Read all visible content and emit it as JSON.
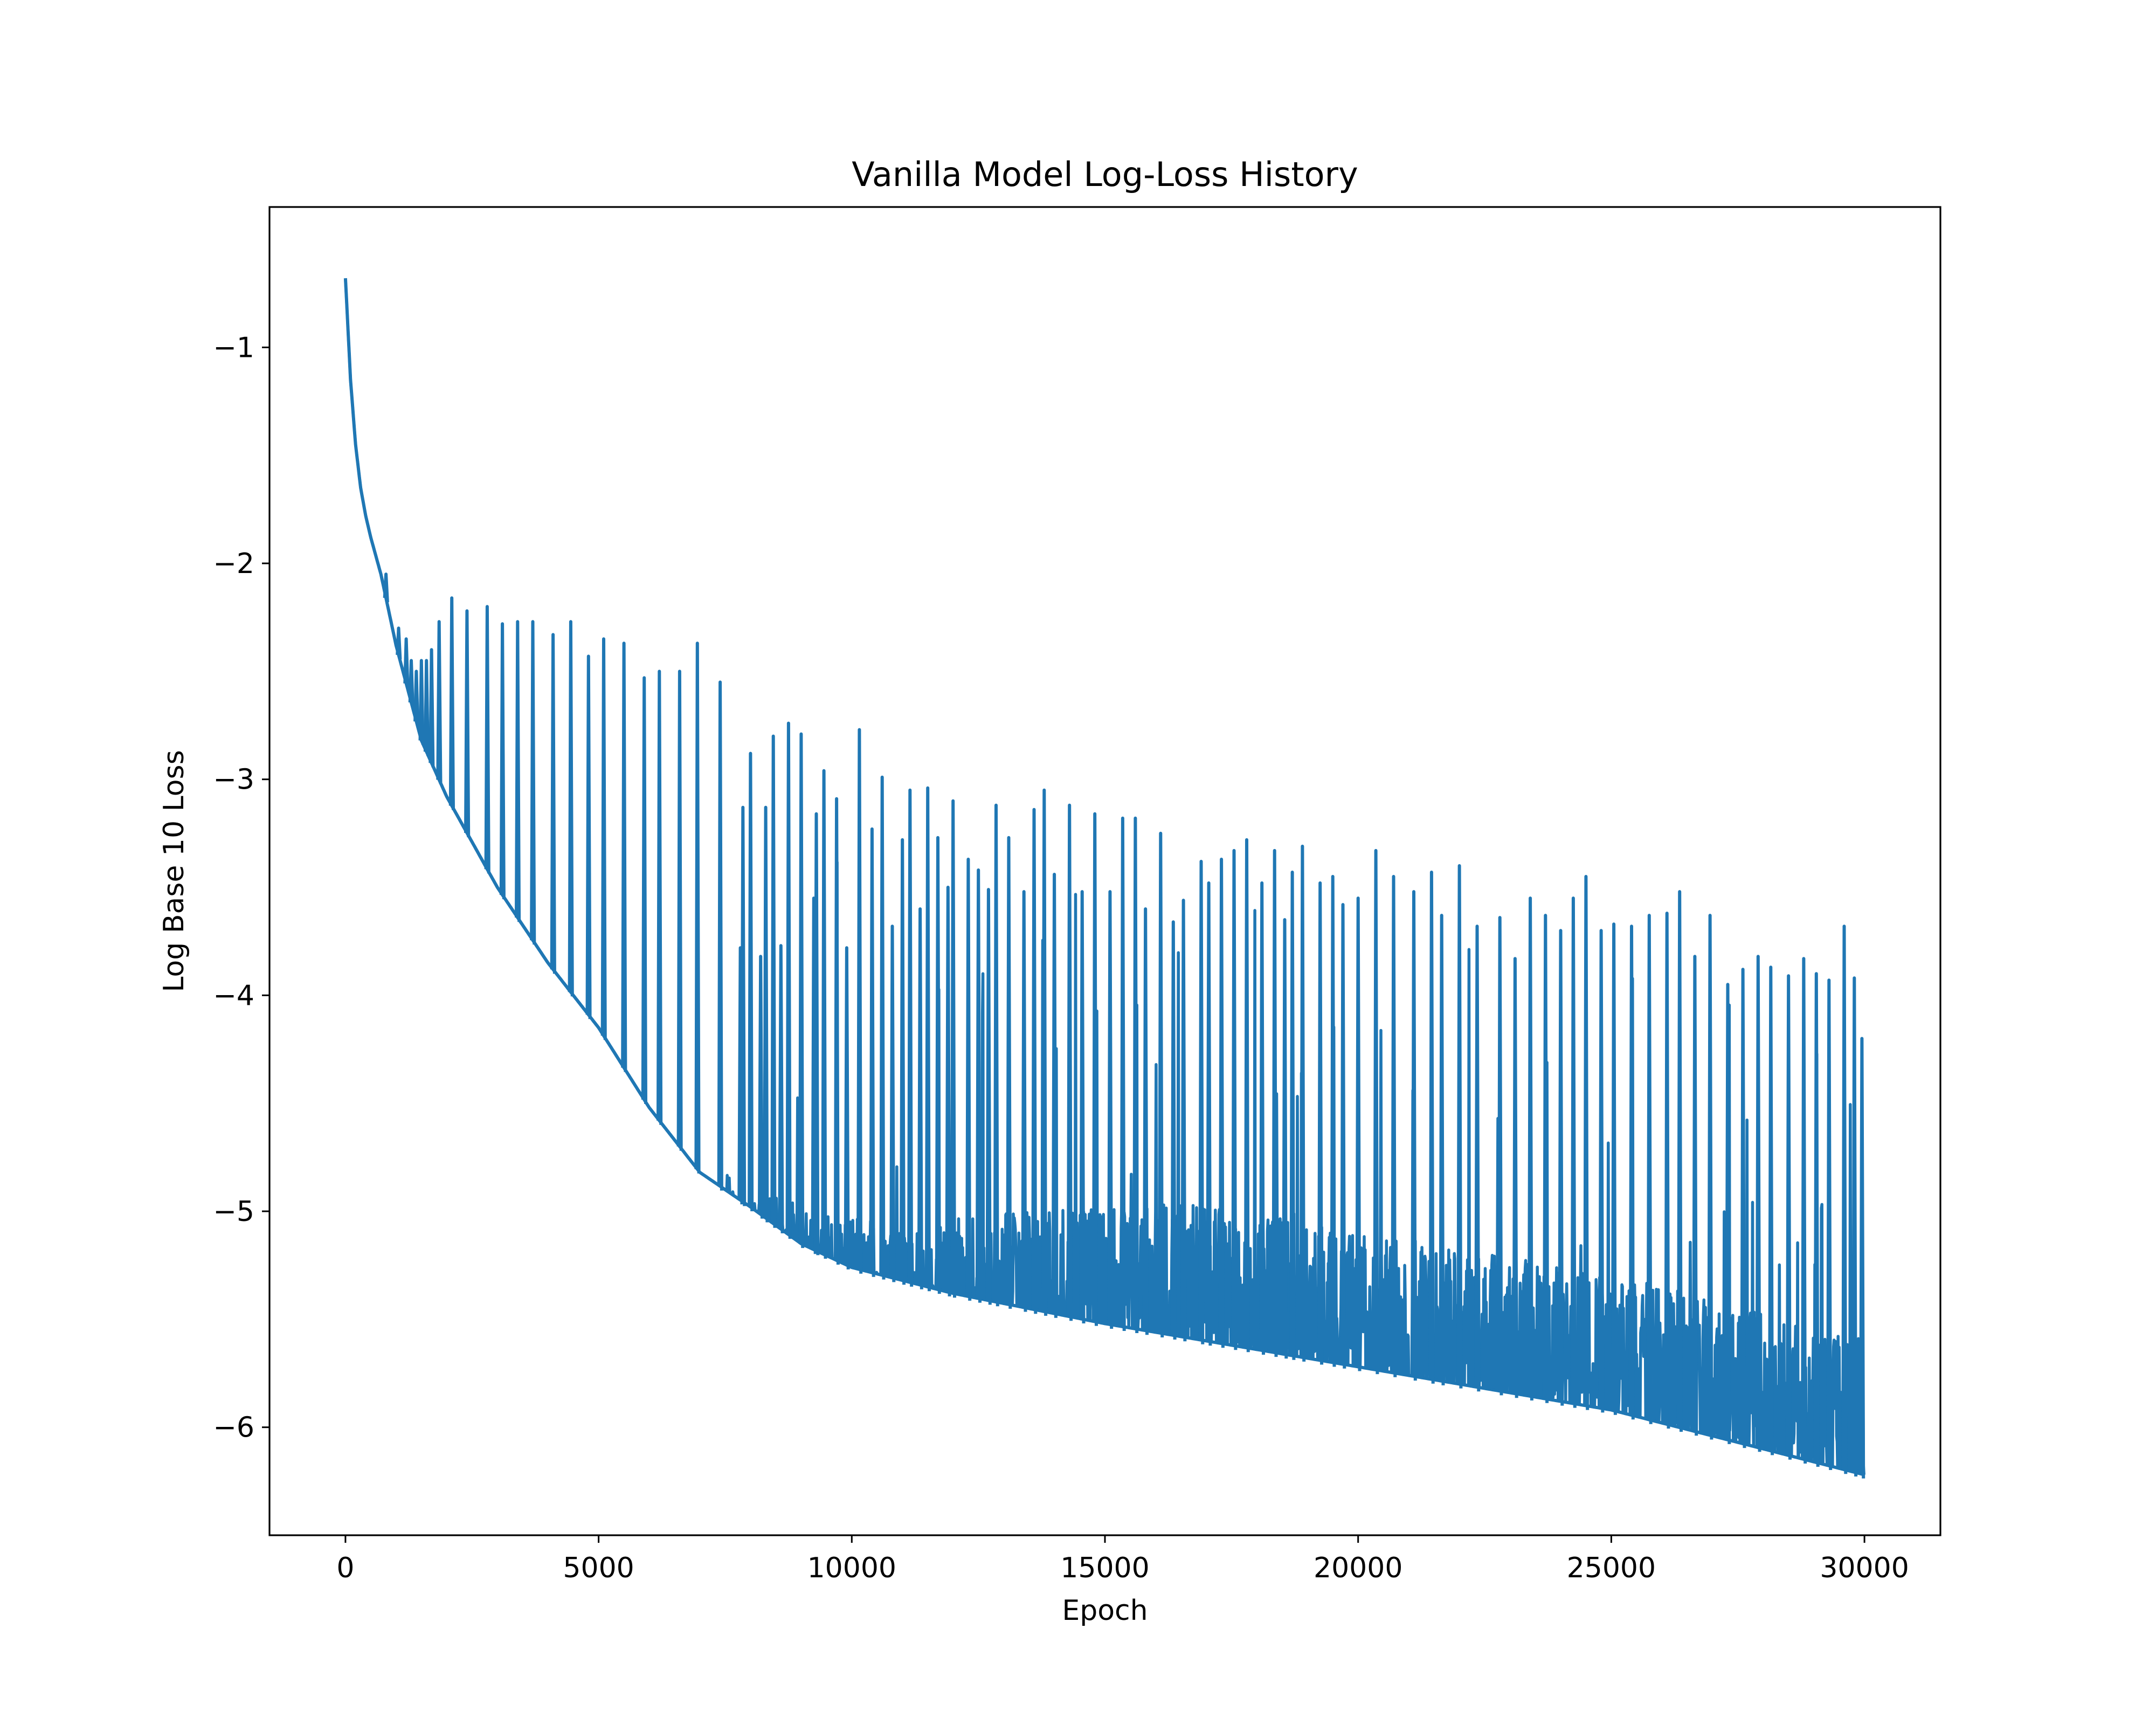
{
  "chart_data": {
    "type": "line",
    "title": "Vanilla Model Log-Loss History",
    "xlabel": "Epoch",
    "ylabel": "Log Base 10 Loss",
    "xlim": [
      -1500,
      31500
    ],
    "ylim": [
      -6.5,
      -0.35
    ],
    "xticks": [
      0,
      5000,
      10000,
      15000,
      20000,
      25000,
      30000
    ],
    "xtick_labels": [
      "0",
      "5000",
      "10000",
      "15000",
      "20000",
      "25000",
      "30000"
    ],
    "yticks": [
      -1,
      -2,
      -3,
      -4,
      -5,
      -6
    ],
    "ytick_labels": [
      "−1",
      "−2",
      "−3",
      "−4",
      "−5",
      "−6"
    ],
    "grid": false,
    "legend": "none",
    "line_color": "#1f77b4",
    "baseline": {
      "x": [
        0,
        100,
        200,
        300,
        400,
        500,
        700,
        1000,
        1500,
        2000,
        3000,
        4000,
        5000,
        6000,
        7000,
        8000,
        9000,
        10000,
        12000,
        15000,
        18000,
        20000,
        22000,
        25000,
        28000,
        30000
      ],
      "y": [
        -0.68,
        -1.15,
        -1.45,
        -1.65,
        -1.78,
        -1.88,
        -2.05,
        -2.38,
        -2.82,
        -3.08,
        -3.5,
        -3.85,
        -4.15,
        -4.52,
        -4.82,
        -4.98,
        -5.15,
        -5.26,
        -5.38,
        -5.52,
        -5.64,
        -5.72,
        -5.8,
        -5.92,
        -6.1,
        -6.22
      ]
    },
    "spikes": [
      {
        "x": 800,
        "y": -2.05
      },
      {
        "x": 1050,
        "y": -2.3
      },
      {
        "x": 1200,
        "y": -2.35
      },
      {
        "x": 1300,
        "y": -2.45
      },
      {
        "x": 1400,
        "y": -2.5
      },
      {
        "x": 1500,
        "y": -2.45
      },
      {
        "x": 1600,
        "y": -2.45
      },
      {
        "x": 1700,
        "y": -2.4
      },
      {
        "x": 1850,
        "y": -2.27
      },
      {
        "x": 2100,
        "y": -2.16
      },
      {
        "x": 2400,
        "y": -2.22
      },
      {
        "x": 2800,
        "y": -2.2
      },
      {
        "x": 3100,
        "y": -2.28
      },
      {
        "x": 3400,
        "y": -2.27
      },
      {
        "x": 3700,
        "y": -2.27
      },
      {
        "x": 4100,
        "y": -2.33
      },
      {
        "x": 4450,
        "y": -2.27
      },
      {
        "x": 4800,
        "y": -2.43
      },
      {
        "x": 5100,
        "y": -2.35
      },
      {
        "x": 5500,
        "y": -2.37
      },
      {
        "x": 5900,
        "y": -2.53
      },
      {
        "x": 6200,
        "y": -2.5
      },
      {
        "x": 6600,
        "y": -2.5
      },
      {
        "x": 6950,
        "y": -2.37
      },
      {
        "x": 7400,
        "y": -2.55
      },
      {
        "x": 7800,
        "y": -3.78
      },
      {
        "x": 7850,
        "y": -3.13
      },
      {
        "x": 8000,
        "y": -2.88
      },
      {
        "x": 8200,
        "y": -3.82
      },
      {
        "x": 8300,
        "y": -3.13
      },
      {
        "x": 8450,
        "y": -2.8
      },
      {
        "x": 8600,
        "y": -3.77
      },
      {
        "x": 8750,
        "y": -2.74
      },
      {
        "x": 9000,
        "y": -2.79
      },
      {
        "x": 9250,
        "y": -3.55
      },
      {
        "x": 9300,
        "y": -3.16
      },
      {
        "x": 9450,
        "y": -2.96
      },
      {
        "x": 9700,
        "y": -3.09
      },
      {
        "x": 9900,
        "y": -3.78
      },
      {
        "x": 10150,
        "y": -2.77
      },
      {
        "x": 10400,
        "y": -3.23
      },
      {
        "x": 10600,
        "y": -2.99
      },
      {
        "x": 10800,
        "y": -3.68
      },
      {
        "x": 11000,
        "y": -3.28
      },
      {
        "x": 11150,
        "y": -3.05
      },
      {
        "x": 11350,
        "y": -3.6
      },
      {
        "x": 11500,
        "y": -3.04
      },
      {
        "x": 11700,
        "y": -3.27
      },
      {
        "x": 11900,
        "y": -3.5
      },
      {
        "x": 12000,
        "y": -3.1
      },
      {
        "x": 12300,
        "y": -3.37
      },
      {
        "x": 12500,
        "y": -3.42
      },
      {
        "x": 12700,
        "y": -3.51
      },
      {
        "x": 12850,
        "y": -3.12
      },
      {
        "x": 13100,
        "y": -3.27
      },
      {
        "x": 13400,
        "y": -3.52
      },
      {
        "x": 13600,
        "y": -3.14
      },
      {
        "x": 13800,
        "y": -3.05
      },
      {
        "x": 14000,
        "y": -3.44
      },
      {
        "x": 14300,
        "y": -3.12
      },
      {
        "x": 14550,
        "y": -3.52
      },
      {
        "x": 14800,
        "y": -3.16
      },
      {
        "x": 15100,
        "y": -3.52
      },
      {
        "x": 15350,
        "y": -3.18
      },
      {
        "x": 15600,
        "y": -3.18
      },
      {
        "x": 15800,
        "y": -3.6
      },
      {
        "x": 16100,
        "y": -3.25
      },
      {
        "x": 16350,
        "y": -3.66
      },
      {
        "x": 16550,
        "y": -3.56
      },
      {
        "x": 16900,
        "y": -3.38
      },
      {
        "x": 17050,
        "y": -3.48
      },
      {
        "x": 17300,
        "y": -3.37
      },
      {
        "x": 17550,
        "y": -3.33
      },
      {
        "x": 17800,
        "y": -3.28
      },
      {
        "x": 18100,
        "y": -3.48
      },
      {
        "x": 18350,
        "y": -3.33
      },
      {
        "x": 18550,
        "y": -3.65
      },
      {
        "x": 18700,
        "y": -3.43
      },
      {
        "x": 18900,
        "y": -3.31
      },
      {
        "x": 19250,
        "y": -3.48
      },
      {
        "x": 19500,
        "y": -3.45
      },
      {
        "x": 19700,
        "y": -3.58
      },
      {
        "x": 20000,
        "y": -3.55
      },
      {
        "x": 20350,
        "y": -3.33
      },
      {
        "x": 20700,
        "y": -3.45
      },
      {
        "x": 21100,
        "y": -3.52
      },
      {
        "x": 21450,
        "y": -3.43
      },
      {
        "x": 21650,
        "y": -3.63
      },
      {
        "x": 22000,
        "y": -3.4
      },
      {
        "x": 22350,
        "y": -3.68
      },
      {
        "x": 22800,
        "y": -3.64
      },
      {
        "x": 23100,
        "y": -3.83
      },
      {
        "x": 23400,
        "y": -3.55
      },
      {
        "x": 23700,
        "y": -3.63
      },
      {
        "x": 24000,
        "y": -3.7
      },
      {
        "x": 24250,
        "y": -3.55
      },
      {
        "x": 24500,
        "y": -3.45
      },
      {
        "x": 24800,
        "y": -3.7
      },
      {
        "x": 25050,
        "y": -3.67
      },
      {
        "x": 25400,
        "y": -3.68
      },
      {
        "x": 25750,
        "y": -3.63
      },
      {
        "x": 26100,
        "y": -3.62
      },
      {
        "x": 26350,
        "y": -3.52
      },
      {
        "x": 26650,
        "y": -3.82
      },
      {
        "x": 26950,
        "y": -3.63
      },
      {
        "x": 27300,
        "y": -3.95
      },
      {
        "x": 27600,
        "y": -3.88
      },
      {
        "x": 27900,
        "y": -3.82
      },
      {
        "x": 28150,
        "y": -3.87
      },
      {
        "x": 28500,
        "y": -3.91
      },
      {
        "x": 28800,
        "y": -3.83
      },
      {
        "x": 29050,
        "y": -3.9
      },
      {
        "x": 29300,
        "y": -3.93
      },
      {
        "x": 29600,
        "y": -3.68
      },
      {
        "x": 29800,
        "y": -3.92
      },
      {
        "x": 29950,
        "y": -4.2
      }
    ]
  }
}
